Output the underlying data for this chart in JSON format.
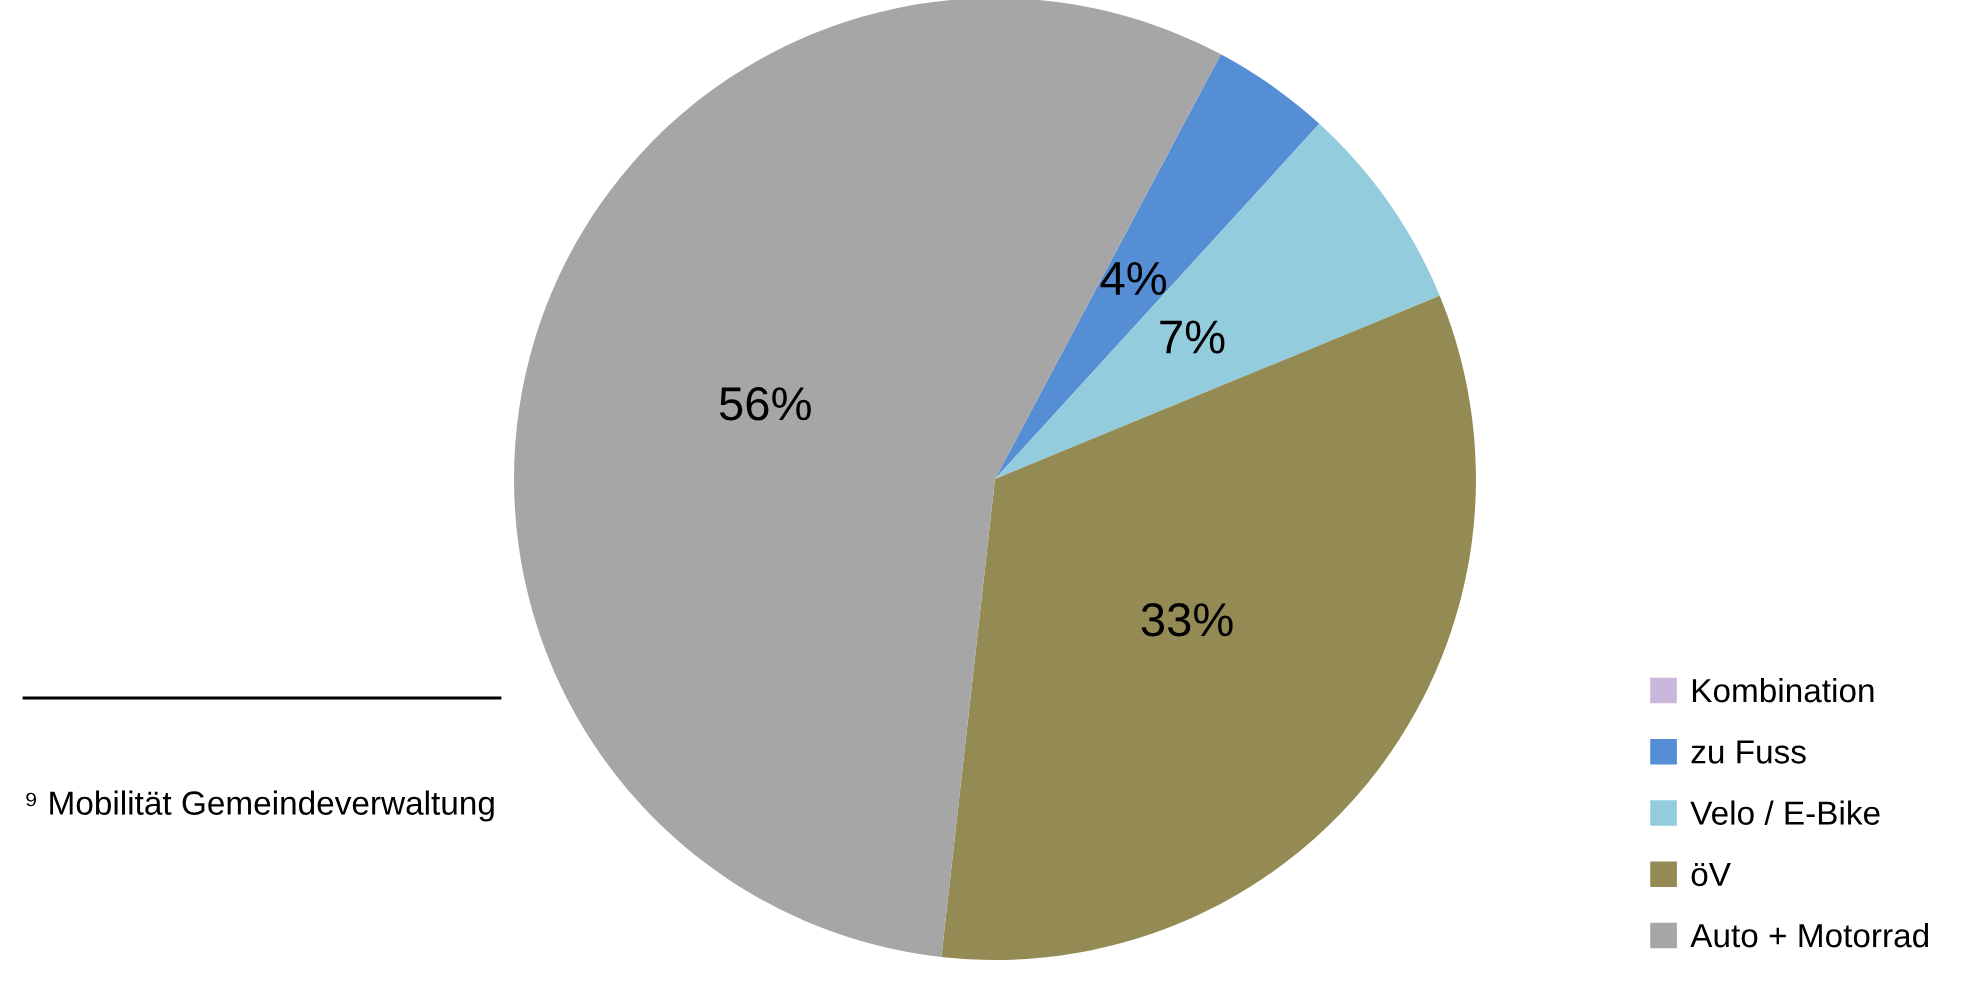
{
  "chart_data": {
    "type": "pie",
    "categories": [
      "Kombination",
      "zu Fuss",
      "Velo / E-Bike",
      "öV",
      "Auto + Motorrad"
    ],
    "values": [
      0,
      4,
      7,
      33,
      56
    ],
    "value_labels": [
      null,
      "4%",
      "7%",
      "33%",
      "56%"
    ],
    "colors": [
      "#c9b8db",
      "#558ed5",
      "#93cddd",
      "#948a54",
      "#a6a6a6"
    ],
    "legend": "bottom right",
    "annotations": [
      "⁹ Mobilität Gemeindeverwaltung"
    ]
  }
}
